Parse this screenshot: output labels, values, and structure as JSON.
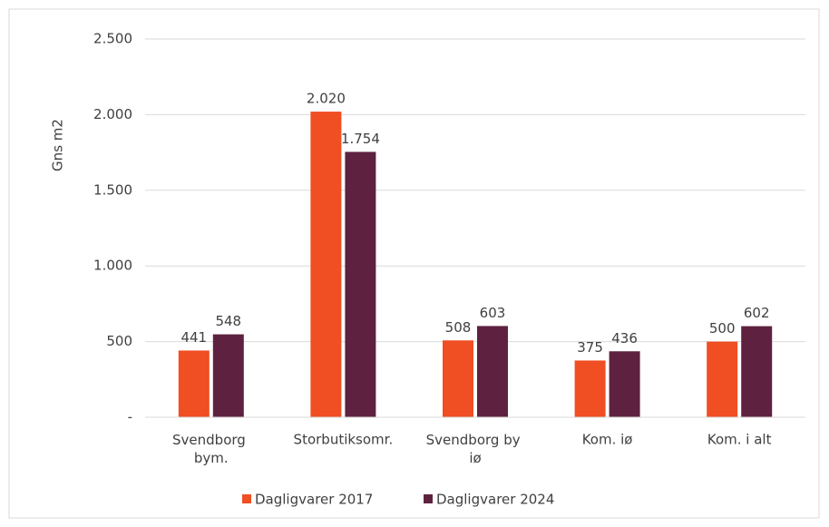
{
  "chart_data": {
    "type": "bar",
    "ylabel": "Gns m2",
    "categories": [
      "Svendborg bym.",
      "Storbutiksomr.",
      "Svendborg by iø",
      "Kom. iø",
      "Kom. i alt"
    ],
    "series": [
      {
        "name": "Dagligvarer 2017",
        "color": "#f04e23",
        "values": [
          441,
          2020,
          508,
          375,
          500
        ],
        "value_labels": [
          "441",
          "2.020",
          "508",
          "375",
          "500"
        ]
      },
      {
        "name": "Dagligvarer 2024",
        "color": "#5e2240",
        "values": [
          548,
          1754,
          603,
          436,
          602
        ],
        "value_labels": [
          "548",
          "1.754",
          "603",
          "436",
          "602"
        ]
      }
    ],
    "ylim": [
      0,
      2500
    ],
    "yticks": [
      {
        "value": 0,
        "label": "-"
      },
      500,
      {
        "value": 1000,
        "label": "1.000"
      },
      {
        "value": 1500,
        "label": "1.500"
      },
      {
        "value": 2000,
        "label": "2.000"
      },
      {
        "value": 2500,
        "label": "2.500"
      }
    ],
    "grid": true,
    "legend": "bottom"
  }
}
